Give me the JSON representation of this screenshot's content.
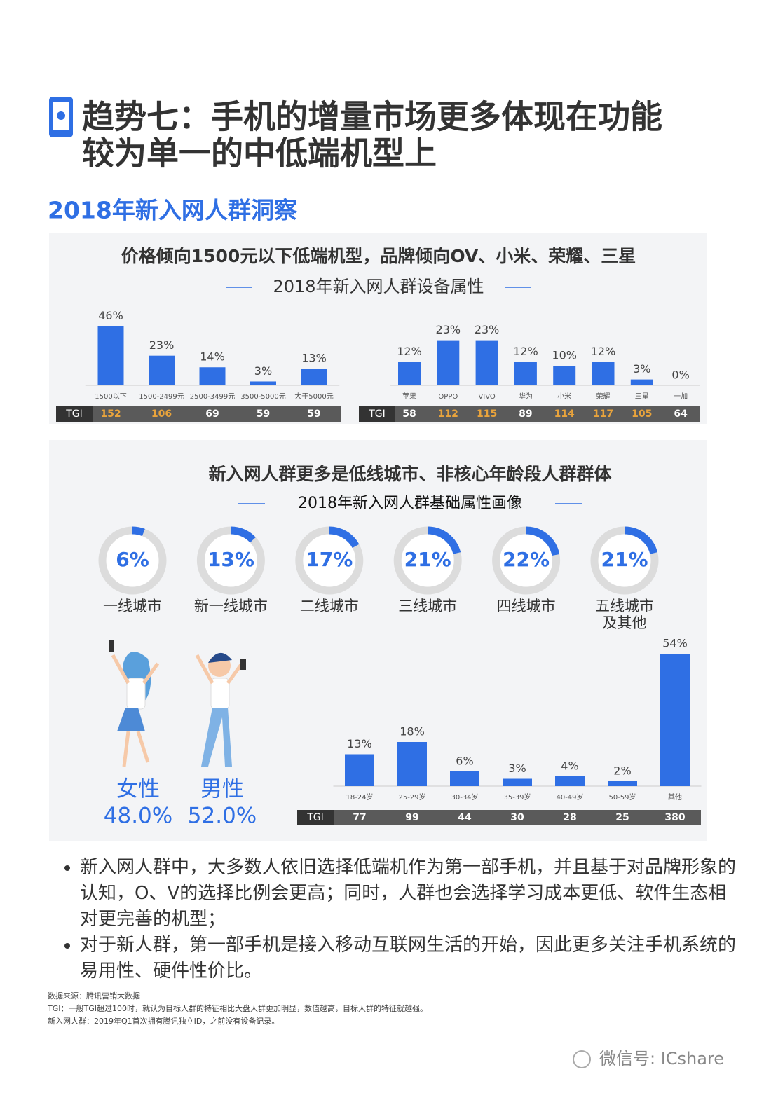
{
  "header": {
    "title_lines": [
      "趋势七：手机的增量市场更多体现在功能",
      "较为单一的中低端机型上"
    ],
    "section": "2018年新入网人群洞察"
  },
  "panels": [
    {
      "title": "价格倾向1500元以下低端机型，品牌倾向OV、小米、荣耀、三星",
      "subtitle": "2018年新入网人群设备属性"
    },
    {
      "title": "新入网人群更多是低线城市、非核心年龄段人群群体",
      "subtitle": "2018年新入网人群基础属性画像"
    }
  ],
  "chart_data": [
    {
      "type": "bar",
      "categories": [
        "1500以下",
        "1500-2499元",
        "2500-3499元",
        "3500-5000元",
        "大于5000元"
      ],
      "values": [
        46,
        23,
        14,
        3,
        13
      ],
      "value_labels": [
        "46%",
        "23%",
        "14%",
        "3%",
        "13%"
      ],
      "color": "#2f6fe4",
      "ylim": [
        0,
        50
      ],
      "tgi": {
        "label": "TGI",
        "values": [
          152,
          106,
          69,
          59,
          59
        ],
        "colors": [
          "#e8a33c",
          "#e8a33c",
          "#ffffff",
          "#ffffff",
          "#ffffff"
        ]
      }
    },
    {
      "type": "bar",
      "categories": [
        "苹果",
        "OPPO",
        "VIVO",
        "华为",
        "小米",
        "荣耀",
        "三星",
        "一加"
      ],
      "values": [
        12,
        23,
        23,
        12,
        10,
        12,
        3,
        0
      ],
      "value_labels": [
        "12%",
        "23%",
        "23%",
        "12%",
        "10%",
        "12%",
        "3%",
        "0%"
      ],
      "color": "#2f6fe4",
      "ylim": [
        0,
        25
      ],
      "tgi": {
        "label": "TGI",
        "values": [
          58,
          112,
          115,
          89,
          114,
          117,
          105,
          64
        ],
        "colors": [
          "#ffffff",
          "#e8a33c",
          "#e8a33c",
          "#ffffff",
          "#e8a33c",
          "#e8a33c",
          "#e8a33c",
          "#ffffff"
        ]
      }
    },
    {
      "type": "bar",
      "categories": [
        "18-24岁",
        "25-29岁",
        "30-34岁",
        "35-39岁",
        "40-49岁",
        "50-59岁",
        "其他"
      ],
      "values": [
        13,
        18,
        6,
        3,
        4,
        2,
        54
      ],
      "value_labels": [
        "13%",
        "18%",
        "6%",
        "3%",
        "4%",
        "2%",
        "54%"
      ],
      "color": "#2f6fe4",
      "ylim": [
        0,
        60
      ],
      "tgi": {
        "label": "TGI",
        "values": [
          77,
          99,
          44,
          30,
          28,
          25,
          380
        ]
      }
    },
    {
      "type": "ring",
      "categories": [
        "一线城市",
        "新一线城市",
        "二线城市",
        "三线城市",
        "四线城市",
        "五线城市\n及其他"
      ],
      "values": [
        6,
        13,
        17,
        21,
        22,
        21
      ],
      "value_labels": [
        "6%",
        "13%",
        "17%",
        "21%",
        "22%",
        "21%"
      ],
      "color": "#2f6fe4",
      "ylim": [
        0,
        100
      ]
    },
    {
      "type": "people",
      "categories": [
        "女性",
        "男性"
      ],
      "values": [
        48.0,
        52.0
      ],
      "value_labels": [
        "48.0%",
        "52.0%"
      ],
      "color": "#2f6fe4"
    }
  ],
  "bullets": [
    "新入网人群中，大多数人依旧选择低端机作为第一部手机，并且基于对品牌形象的认知，O、V的选择比例会更高；同时，人群也会选择学习成本更低、软件生态相对更完善的机型；",
    "对于新人群，第一部手机是接入移动互联网生活的开始，因此更多关注手机系统的易用性、硬件性价比。"
  ],
  "notes": [
    "数据来源：腾讯营销大数据",
    "TGI：一般TGI超过100时，就认为目标人群的特征相比大盘人群更加明显，数值越高，目标人群的特征就越强。",
    "新入网人群：2019年Q1首次拥有腾讯独立ID，之前没有设备记录。"
  ],
  "watermark": "微信号: ICshare"
}
